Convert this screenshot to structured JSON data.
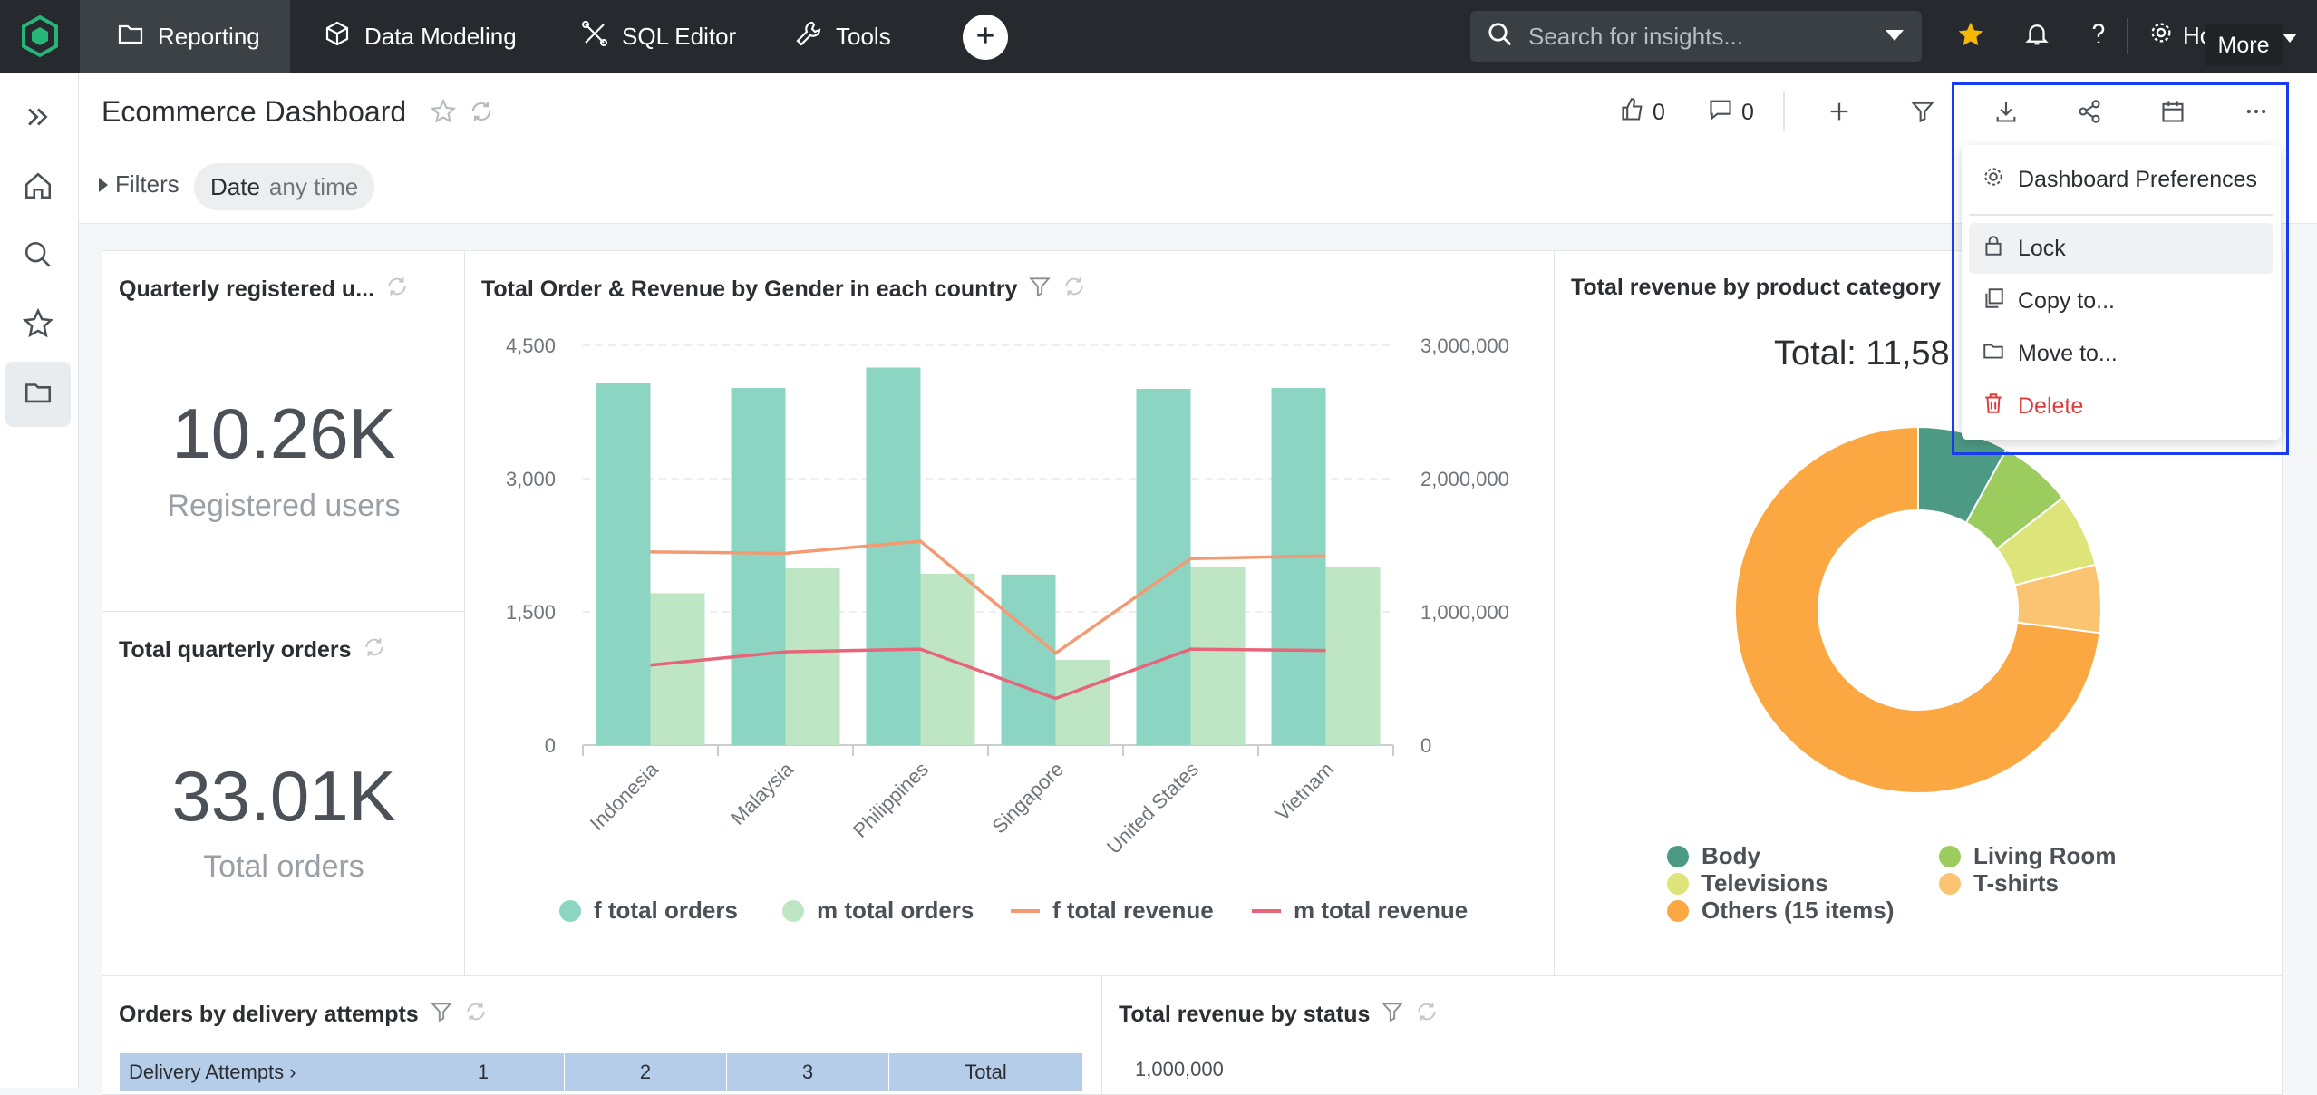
{
  "topbar": {
    "nav": [
      {
        "label": "Reporting",
        "icon": "folder-report-icon",
        "active": true
      },
      {
        "label": "Data Modeling",
        "icon": "cube-icon",
        "active": false
      },
      {
        "label": "SQL Editor",
        "icon": "sql-editor-icon",
        "active": false
      },
      {
        "label": "Tools",
        "icon": "wrench-icon",
        "active": false
      }
    ],
    "search_placeholder": "Search for insights...",
    "user_label_partial": "Ho",
    "tooltip": "More"
  },
  "dashboard": {
    "title": "Ecommerce Dashboard",
    "likes": "0",
    "comments": "0"
  },
  "filters": {
    "label": "Filters",
    "chip_field": "Date",
    "chip_value": "any time"
  },
  "menu": {
    "items": [
      {
        "label": "Dashboard Preferences",
        "icon": "gear-icon"
      },
      {
        "label": "Lock",
        "icon": "lock-icon"
      },
      {
        "label": "Copy to...",
        "icon": "copy-icon"
      },
      {
        "label": "Move to...",
        "icon": "folder-icon"
      },
      {
        "label": "Delete",
        "icon": "trash-icon"
      }
    ],
    "delete_color": "#e03b3b"
  },
  "widgets": {
    "registered": {
      "title": "Quarterly registered u...",
      "value": "10.26K",
      "label": "Registered users"
    },
    "orders": {
      "title": "Total quarterly orders",
      "value": "33.01K",
      "label": "Total orders"
    },
    "combo": {
      "title": "Total Order & Revenue by Gender in each country"
    },
    "donut": {
      "title": "Total revenue by product category",
      "total_text": "Total: 11,58"
    },
    "delivery": {
      "title": "Orders by delivery attempts",
      "table_headers": [
        "Delivery Attempts",
        "1",
        "2",
        "3",
        "Total"
      ]
    },
    "status": {
      "title": "Total revenue by status",
      "tick_top": "1,000,000"
    }
  },
  "chart_data": [
    {
      "type": "bar",
      "categories": [
        "Indonesia",
        "Malaysia",
        "Philippines",
        "Singapore",
        "United States",
        "Vietnam"
      ],
      "series": [
        {
          "name": "f total orders",
          "kind": "bar",
          "axis": "left",
          "color": "#8dd5c3",
          "values": [
            4080,
            4020,
            4250,
            1920,
            4010,
            4020
          ]
        },
        {
          "name": "m total orders",
          "kind": "bar",
          "axis": "left",
          "color": "#bfe6c4",
          "values": [
            1710,
            1990,
            1930,
            960,
            2000,
            2000
          ]
        },
        {
          "name": "f total revenue",
          "kind": "line",
          "axis": "right",
          "color": "#f39a73",
          "values": [
            1450000,
            1440000,
            1530000,
            690000,
            1400000,
            1420000
          ]
        },
        {
          "name": "m total revenue",
          "kind": "line",
          "axis": "right",
          "color": "#e86478",
          "values": [
            600000,
            700000,
            720000,
            350000,
            720000,
            710000
          ]
        }
      ],
      "y_left": {
        "range": [
          0,
          4500
        ],
        "ticks": [
          "0",
          "1,500",
          "3,000",
          "4,500"
        ],
        "tick_values": [
          0,
          1500,
          3000,
          4500
        ]
      },
      "y_right": {
        "range": [
          0,
          3000000
        ],
        "ticks": [
          "0",
          "1,000,000",
          "2,000,000",
          "3,000,000"
        ],
        "tick_values": [
          0,
          1000000,
          2000000,
          3000000
        ]
      },
      "grid": true,
      "legend": "bottom"
    },
    {
      "type": "pie",
      "slices": [
        {
          "name": "Body",
          "value": 0.08,
          "color": "#4c9a84"
        },
        {
          "name": "Living Room",
          "value": 0.065,
          "color": "#9ccc5e"
        },
        {
          "name": "Televisions",
          "value": 0.065,
          "color": "#dde57a"
        },
        {
          "name": "T-shirts",
          "value": 0.06,
          "color": "#fbc473"
        },
        {
          "name": "Others (15 items)",
          "value": 0.73,
          "color": "#fba742"
        }
      ],
      "legend": "bottom"
    }
  ]
}
